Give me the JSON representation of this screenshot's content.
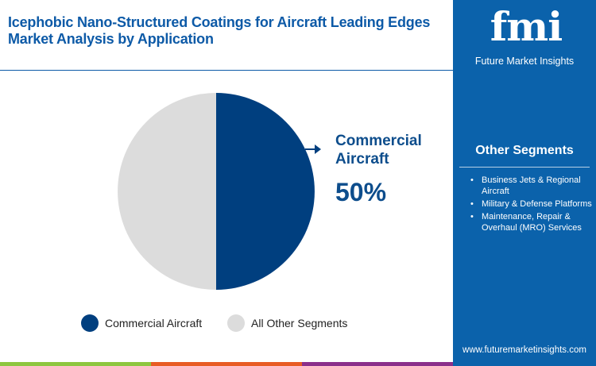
{
  "title": "Icephobic Nano-Structured Coatings for Aircraft Leading Edges Market Analysis by Application",
  "brand": {
    "logo_text": "fmi",
    "name": "Future Market Insights",
    "url": "www.futuremarketinsights.com"
  },
  "other_segments": {
    "heading": "Other Segments",
    "items": [
      "Business Jets & Regional Aircraft",
      "Military & Defense Platforms",
      "Maintenance, Repair & Overhaul (MRO) Services"
    ]
  },
  "colors": {
    "primary": "#003f7f",
    "secondary": "#dcdcdc",
    "panel": "#0b62ab",
    "bar": [
      "#8dc63f",
      "#e85c24",
      "#8b2f8b"
    ]
  },
  "chart_data": {
    "type": "pie",
    "categories": [
      "Commercial Aircraft",
      "All Other Segments"
    ],
    "values": [
      50,
      50
    ],
    "callout": {
      "label": "Commercial Aircraft",
      "value_label": "50%"
    },
    "legend": [
      "Commercial Aircraft",
      "All Other Segments"
    ],
    "legend_placement": "bottom"
  }
}
